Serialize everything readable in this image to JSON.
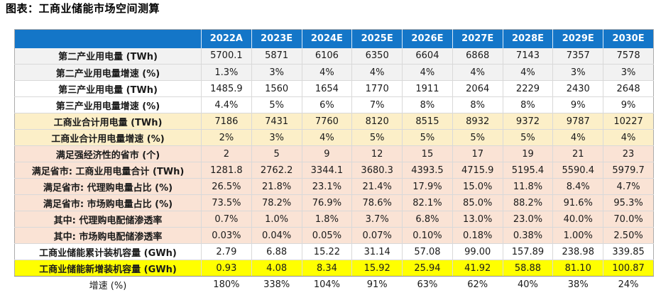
{
  "page_title": "图表：工商业储能市场空间测算",
  "colors": {
    "header_bg": "#1476C8",
    "header_text": "#FFFFFF",
    "row_gray": "#F2F2F2",
    "row_white": "#FFFFFF",
    "row_cream": "#FCEFC8",
    "row_pink": "#FAE3D5",
    "row_yellow": "#FFFF00",
    "border": "#D9D9D9",
    "outer_border": "#ABABAB",
    "strong_border": "#8F8F8F"
  },
  "chart_data": {
    "type": "table",
    "title": "图表：工商业储能市场空间测算",
    "label_column_header": "",
    "columns": [
      "2022A",
      "2023E",
      "2024E",
      "2025E",
      "2026E",
      "2027E",
      "2028E",
      "2029E",
      "2030E"
    ],
    "rows": [
      {
        "label": "第二产业用电量 (TWh)",
        "style": "gray",
        "bold_label": true,
        "values": [
          "5700.1",
          "5871",
          "6106",
          "6350",
          "6604",
          "6868",
          "7143",
          "7357",
          "7578"
        ]
      },
      {
        "label": "第二产业用电量增速 (%)",
        "style": "gray",
        "bold_label": true,
        "values": [
          "1.3%",
          "3%",
          "4%",
          "4%",
          "4%",
          "4%",
          "4%",
          "3%",
          "3%"
        ]
      },
      {
        "label": "第三产业用电量 (TWh)",
        "style": "white",
        "bold_label": true,
        "values": [
          "1485.9",
          "1560",
          "1654",
          "1770",
          "1911",
          "2064",
          "2229",
          "2430",
          "2648"
        ]
      },
      {
        "label": "第三产业用电量增速 (%)",
        "style": "white",
        "bold_label": true,
        "values": [
          "4.4%",
          "5%",
          "6%",
          "7%",
          "8%",
          "8%",
          "8%",
          "9%",
          "9%"
        ]
      },
      {
        "label": "工商业合计用电量 (TWh)",
        "style": "cream",
        "bold_label": true,
        "values": [
          "7186",
          "7431",
          "7760",
          "8120",
          "8515",
          "8932",
          "9372",
          "9787",
          "10227"
        ]
      },
      {
        "label": "工商业合计用电量增速 (%)",
        "style": "cream",
        "bold_label": true,
        "values": [
          "2%",
          "3%",
          "4%",
          "5%",
          "5%",
          "5%",
          "5%",
          "4%",
          "4%"
        ]
      },
      {
        "label": "满足强经济性的省市 (个)",
        "style": "pink",
        "bold_label": true,
        "values": [
          "2",
          "5",
          "9",
          "12",
          "15",
          "17",
          "19",
          "21",
          "23"
        ]
      },
      {
        "label": "满足省市: 工商业用电量合计 (TWh)",
        "style": "pink",
        "bold_label": true,
        "values": [
          "1281.8",
          "2762.2",
          "3344.1",
          "3680.3",
          "4393.5",
          "4715.9",
          "5195.4",
          "5590.4",
          "5979.7"
        ]
      },
      {
        "label": "满足省市: 代理购电量占比 (%)",
        "style": "pink",
        "bold_label": true,
        "values": [
          "26.5%",
          "21.8%",
          "23.1%",
          "21.4%",
          "17.9%",
          "15.0%",
          "11.8%",
          "8.4%",
          "4.7%"
        ]
      },
      {
        "label": "满足省市: 市场购电量占比 (%)",
        "style": "pink",
        "bold_label": true,
        "values": [
          "73.5%",
          "78.2%",
          "76.9%",
          "78.6%",
          "82.1%",
          "85.0%",
          "88.2%",
          "91.6%",
          "95.3%"
        ]
      },
      {
        "label": "其中: 代理购电配储渗透率",
        "style": "pink",
        "bold_label": true,
        "values": [
          "0.7%",
          "1.0%",
          "1.8%",
          "3.7%",
          "6.8%",
          "13.0%",
          "23.0%",
          "40.0%",
          "70.0%"
        ]
      },
      {
        "label": "其中: 市场购电配储渗透率",
        "style": "pink",
        "bold_label": true,
        "values": [
          "0.03%",
          "0.04%",
          "0.05%",
          "0.07%",
          "0.10%",
          "0.18%",
          "0.38%",
          "1.00%",
          "2.50%"
        ]
      },
      {
        "label": "工商业储能累计装机容量 (GWh)",
        "style": "white",
        "bold_label": true,
        "values": [
          "2.79",
          "6.88",
          "15.22",
          "31.14",
          "57.08",
          "99.00",
          "157.89",
          "238.98",
          "339.85"
        ]
      },
      {
        "label": "工商业储能新增装机容量 (GWh)",
        "style": "yellow",
        "bold_label": true,
        "values": [
          "0.93",
          "4.08",
          "8.34",
          "15.92",
          "25.94",
          "41.92",
          "58.88",
          "81.10",
          "100.87"
        ]
      },
      {
        "label": "增速 (%)",
        "style": "plain",
        "bold_label": false,
        "values": [
          "180%",
          "338%",
          "104%",
          "91%",
          "63%",
          "62%",
          "40%",
          "38%",
          "24%"
        ]
      }
    ]
  }
}
